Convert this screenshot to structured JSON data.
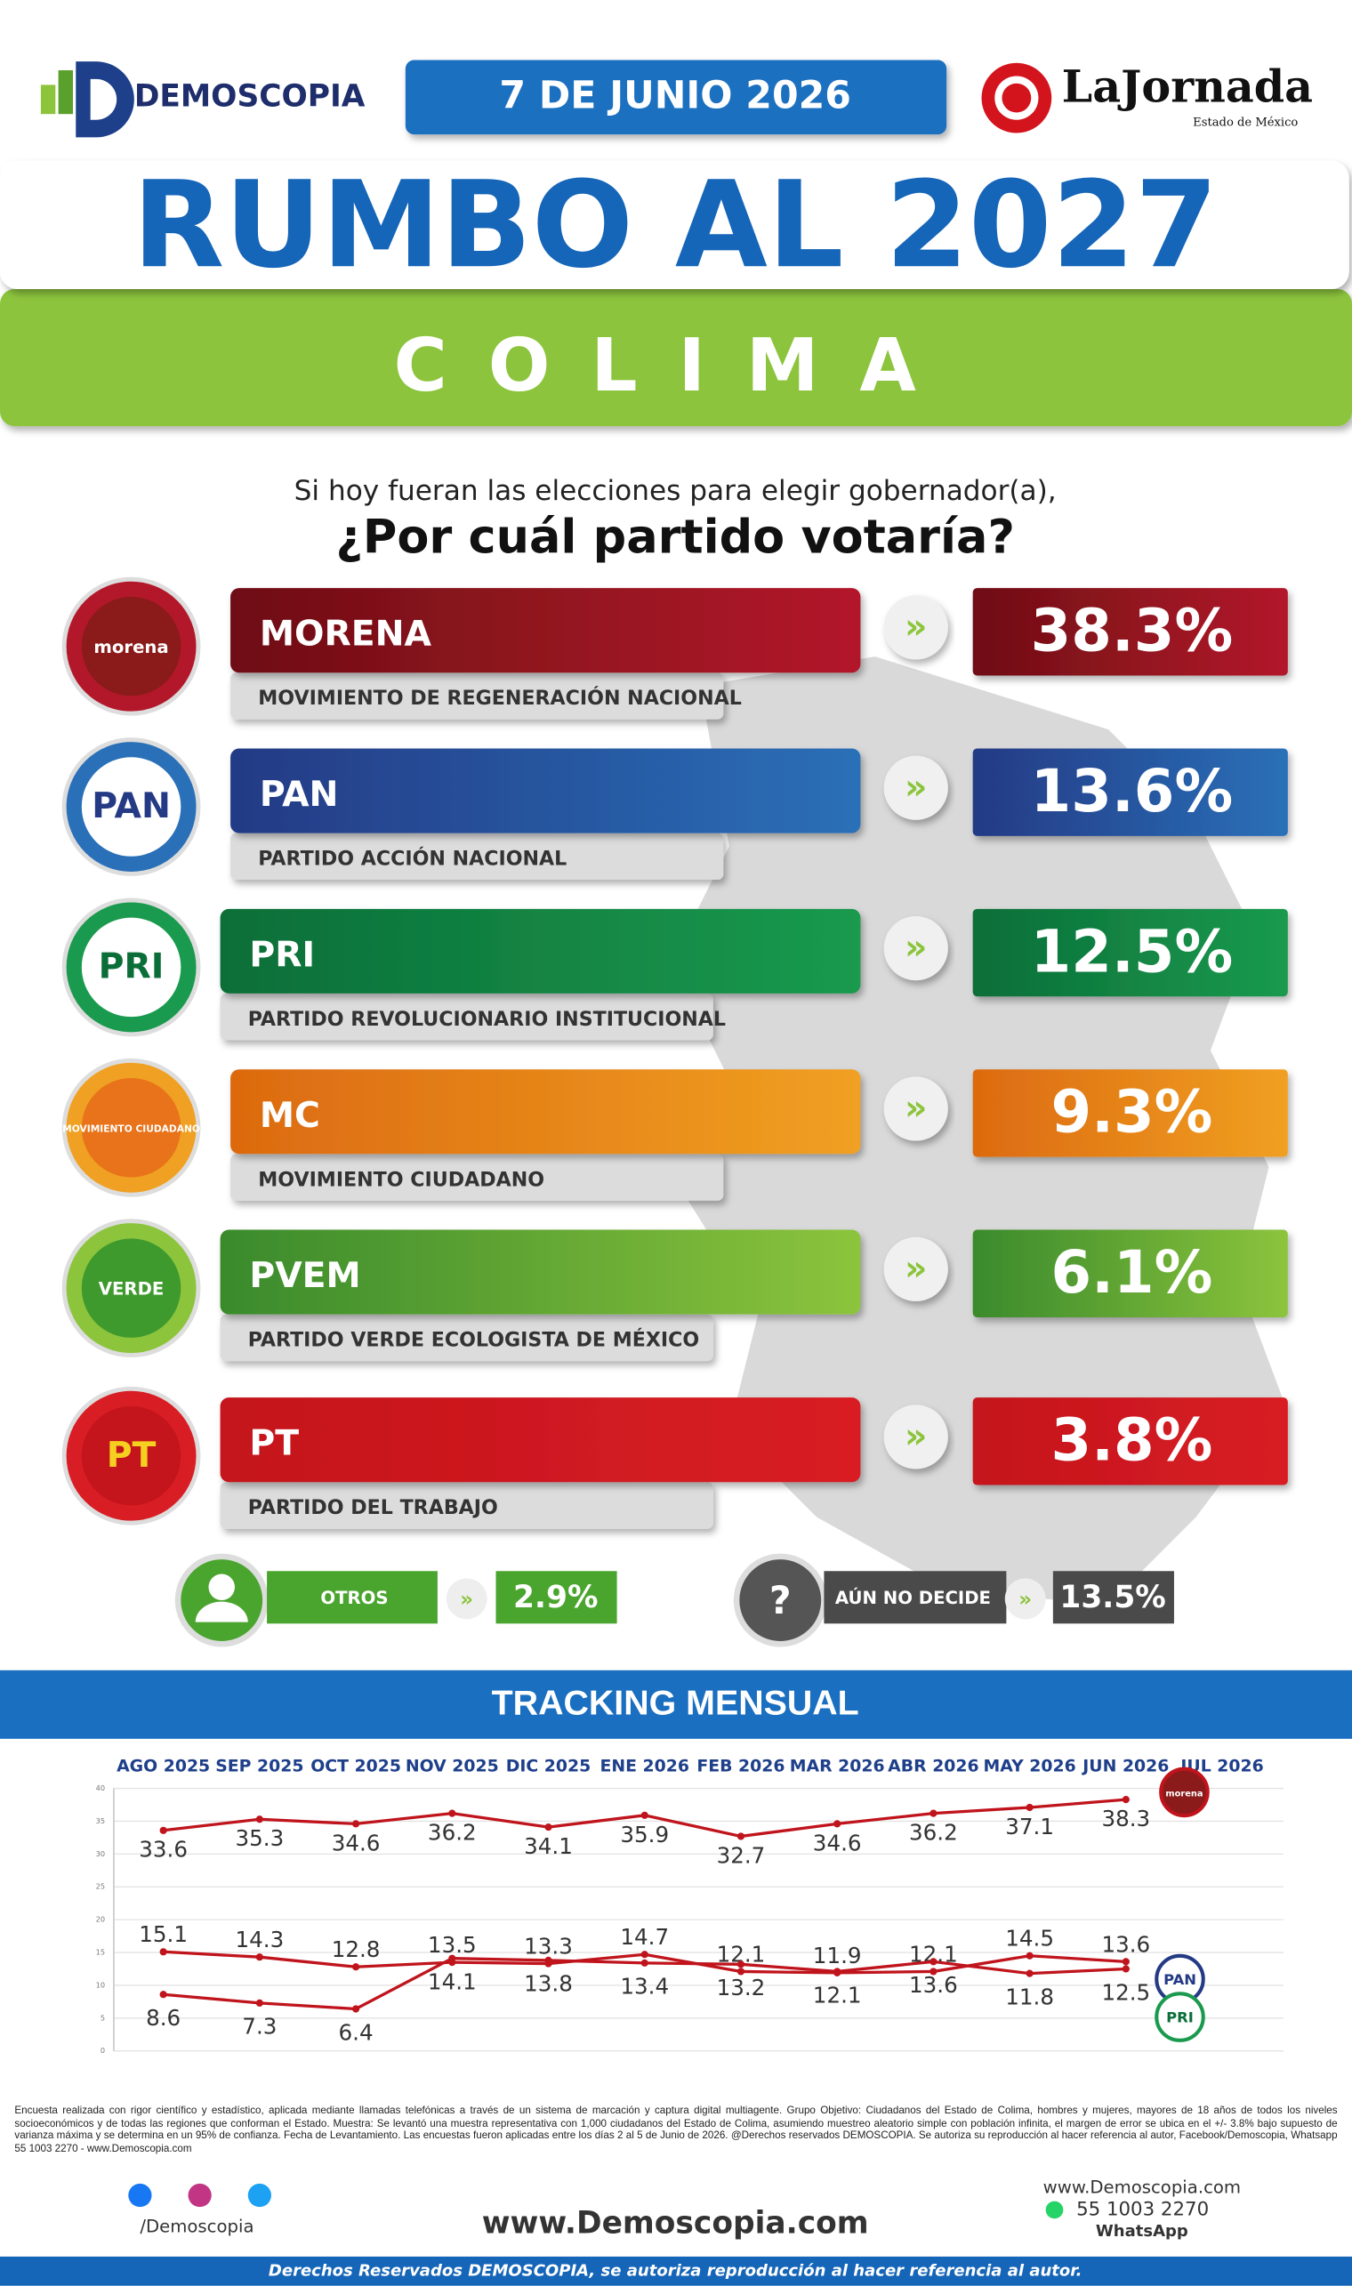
{
  "header": {
    "brand": "DEMOSCOPIA",
    "date": "7 DE JUNIO 2026",
    "newspaper": "LaJornada",
    "newspaper_edition": "Estado de México",
    "title": "RUMBO AL 2027",
    "state": "COLIMA"
  },
  "question": {
    "intro": "Si hoy fueran las elecciones para elegir gobernador(a),",
    "main": "¿Por cuál partido votaría?"
  },
  "parties": [
    {
      "logo": "morena",
      "name": "MORENA",
      "full_name": "MOVIMIENTO DE REGENERACIÓN NACIONAL",
      "percent": "38.3%"
    },
    {
      "logo": "PAN",
      "name": "PAN",
      "full_name": "PARTIDO ACCIÓN NACIONAL",
      "percent": "13.6%"
    },
    {
      "logo": "PRI",
      "name": "PRI",
      "full_name": "PARTIDO REVOLUCIONARIO INSTITUCIONAL",
      "percent": "12.5%"
    },
    {
      "logo": "MOVIMIENTO CIUDADANO",
      "name": "MC",
      "full_name": "MOVIMIENTO CIUDADANO",
      "percent": "9.3%"
    },
    {
      "logo": "VERDE",
      "name": "PVEM",
      "full_name": "PARTIDO VERDE ECOLOGISTA DE MÉXICO",
      "percent": "6.1%"
    },
    {
      "logo": "PT",
      "name": "PT",
      "full_name": "PARTIDO DEL TRABAJO",
      "percent": "3.8%"
    }
  ],
  "others": {
    "label": "OTROS",
    "percent": "2.9%"
  },
  "undecided": {
    "icon": "?",
    "label": "AÚN NO DECIDE",
    "percent": "13.5%"
  },
  "chart_data": {
    "type": "line",
    "title": "TRACKING MENSUAL",
    "categories": [
      "AGO 2025",
      "SEP 2025",
      "OCT 2025",
      "NOV 2025",
      "DIC 2025",
      "ENE 2026",
      "FEB 2026",
      "MAR 2026",
      "ABR 2026",
      "MAY 2026",
      "JUN 2026",
      "JUL 2026"
    ],
    "series": [
      {
        "name": "morena",
        "color": "#c0141c",
        "values": [
          33.6,
          35.3,
          34.6,
          36.2,
          34.1,
          35.9,
          32.7,
          34.6,
          36.2,
          37.1,
          38.3,
          null
        ]
      },
      {
        "name": "PAN",
        "color": "#c0141c",
        "values": [
          15.1,
          14.3,
          12.8,
          13.5,
          13.3,
          14.7,
          12.1,
          11.9,
          12.1,
          14.5,
          13.6,
          null
        ]
      },
      {
        "name": "PRI",
        "color": "#c0141c",
        "values": [
          8.6,
          7.3,
          6.4,
          14.1,
          13.8,
          13.4,
          13.2,
          12.1,
          13.6,
          11.8,
          12.5,
          null
        ]
      }
    ],
    "ylim": [
      0,
      40
    ],
    "yticks": [
      0,
      5,
      10,
      15,
      20,
      25,
      30,
      35,
      40
    ],
    "grid": true
  },
  "footer": {
    "disclaimer": "Encuesta realizada con rigor científico y estadístico, aplicada mediante llamadas telefónicas a través de un sistema de marcación y captura digital multiagente. Grupo Objetivo: Ciudadanos del Estado de Colima, hombres y mujeres, mayores de 18 años de todos los niveles socioeconómicos y de todas las regiones que conforman el Estado. Muestra: Se levantó una muestra representativa con 1,000 ciudadanos del Estado de Colima, asumiendo muestreo aleatorio simple con población infinita, el margen de error se ubica en el +/- 3.8% bajo supuesto de varianza máxima y se determina en un 95% de confianza. Fecha de Levantamiento. Las encuestas fueron aplicadas entre los días 2 al 5 de Junio de 2026. @Derechos reservados DEMOSCOPIA. Se autoriza su reproducción al hacer referencia al autor, Facebook/Demoscopia, Whatsapp 55 1003 2270 - www.Demoscopia.com",
    "social": "/Demoscopia",
    "website": "www.Demoscopia.com",
    "website_small": "www.Demoscopia.com",
    "phone": "55 1003 2270",
    "whatsapp": "WhatsApp",
    "rights": "Derechos Reservados DEMOSCOPIA, se autoriza reproducción al hacer referencia al autor."
  }
}
